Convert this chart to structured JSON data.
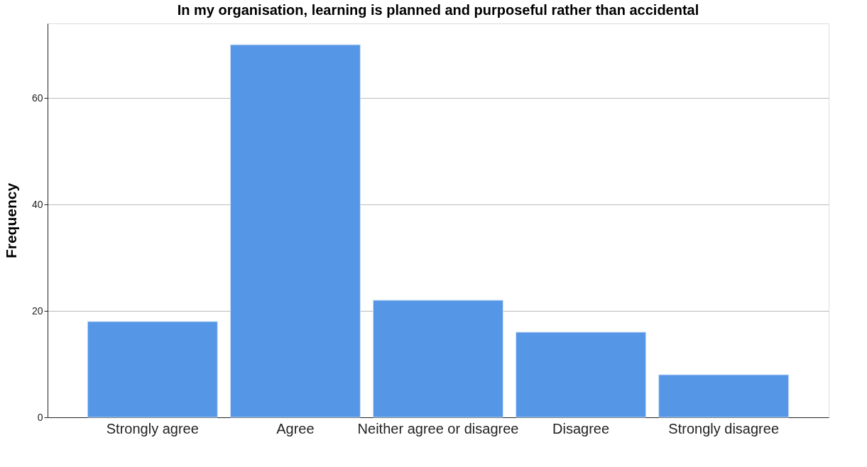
{
  "chart_data": {
    "type": "bar",
    "title": "In my organisation, learning is planned and purposeful rather than accidental",
    "ylabel": "Frequency",
    "categories": [
      "Strongly agree",
      "Agree",
      "Neither agree or disagree",
      "Disagree",
      "Strongly disagree"
    ],
    "values": [
      18,
      70,
      22,
      16,
      8
    ],
    "color": "#5596e6",
    "ylim": [
      0,
      74
    ],
    "yticks": [
      0,
      20,
      40,
      60
    ],
    "grid": "y"
  }
}
